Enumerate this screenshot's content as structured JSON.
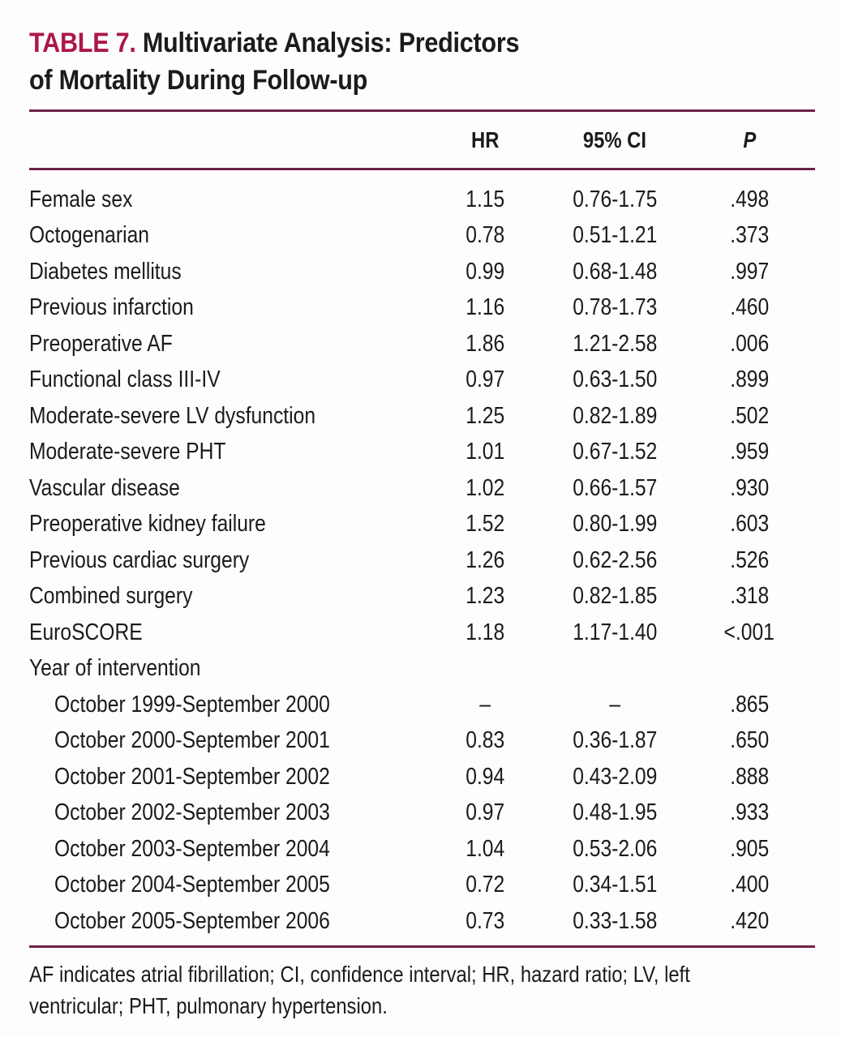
{
  "title": {
    "label": "TABLE 7.",
    "rest_line1": "Multivariate Analysis: Predictors",
    "line2": "of Mortality During Follow-up"
  },
  "columns": {
    "hr": "HR",
    "ci": "95% CI",
    "p": "P"
  },
  "rows": [
    {
      "label": "Female sex",
      "indent": false,
      "hr": "1.15",
      "ci": "0.76-1.75",
      "p": ".498"
    },
    {
      "label": "Octogenarian",
      "indent": false,
      "hr": "0.78",
      "ci": "0.51-1.21",
      "p": ".373"
    },
    {
      "label": "Diabetes mellitus",
      "indent": false,
      "hr": "0.99",
      "ci": "0.68-1.48",
      "p": ".997"
    },
    {
      "label": "Previous infarction",
      "indent": false,
      "hr": "1.16",
      "ci": "0.78-1.73",
      "p": ".460"
    },
    {
      "label": "Preoperative AF",
      "indent": false,
      "hr": "1.86",
      "ci": "1.21-2.58",
      "p": ".006"
    },
    {
      "label": "Functional class III-IV",
      "indent": false,
      "hr": "0.97",
      "ci": "0.63-1.50",
      "p": ".899"
    },
    {
      "label": "Moderate-severe LV dysfunction",
      "indent": false,
      "hr": "1.25",
      "ci": "0.82-1.89",
      "p": ".502"
    },
    {
      "label": "Moderate-severe PHT",
      "indent": false,
      "hr": "1.01",
      "ci": "0.67-1.52",
      "p": ".959"
    },
    {
      "label": "Vascular disease",
      "indent": false,
      "hr": "1.02",
      "ci": "0.66-1.57",
      "p": ".930"
    },
    {
      "label": "Preoperative kidney failure",
      "indent": false,
      "hr": "1.52",
      "ci": "0.80-1.99",
      "p": ".603"
    },
    {
      "label": "Previous cardiac surgery",
      "indent": false,
      "hr": "1.26",
      "ci": "0.62-2.56",
      "p": ".526"
    },
    {
      "label": "Combined surgery",
      "indent": false,
      "hr": "1.23",
      "ci": "0.82-1.85",
      "p": ".318"
    },
    {
      "label": "EuroSCORE",
      "indent": false,
      "hr": "1.18",
      "ci": "1.17-1.40",
      "p": "<.001"
    },
    {
      "label": "Year of intervention",
      "indent": false,
      "hr": "",
      "ci": "",
      "p": ""
    },
    {
      "label": "October 1999-September 2000",
      "indent": true,
      "hr": "–",
      "ci": "–",
      "p": ".865"
    },
    {
      "label": "October 2000-September 2001",
      "indent": true,
      "hr": "0.83",
      "ci": "0.36-1.87",
      "p": ".650"
    },
    {
      "label": "October 2001-September 2002",
      "indent": true,
      "hr": "0.94",
      "ci": "0.43-2.09",
      "p": ".888"
    },
    {
      "label": "October 2002-September 2003",
      "indent": true,
      "hr": "0.97",
      "ci": "0.48-1.95",
      "p": ".933"
    },
    {
      "label": "October 2003-September 2004",
      "indent": true,
      "hr": "1.04",
      "ci": "0.53-2.06",
      "p": ".905"
    },
    {
      "label": "October 2004-September 2005",
      "indent": true,
      "hr": "0.72",
      "ci": "0.34-1.51",
      "p": ".400"
    },
    {
      "label": "October 2005-September 2006",
      "indent": true,
      "hr": "0.73",
      "ci": "0.33-1.58",
      "p": ".420"
    }
  ],
  "footnote": {
    "line1": "AF indicates atrial fibrillation; CI, confidence interval; HR, hazard ratio; LV, left",
    "line2": "ventricular; PHT, pulmonary hypertension."
  },
  "colors": {
    "accent": "#ae1748",
    "rule": "#6d2246",
    "text": "#1b1b1b"
  }
}
